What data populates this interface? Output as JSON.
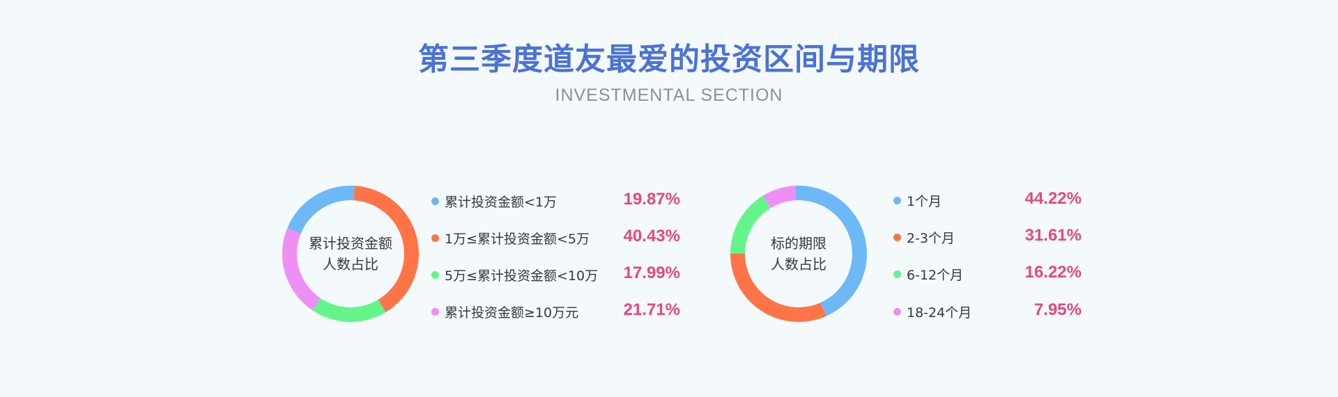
{
  "header": {
    "title": "第三季度道友最爱的投资区间与期限",
    "subtitle": "INVESTMENTAL SECTION"
  },
  "chart_data": [
    {
      "type": "pie",
      "title": "",
      "center_label_line1": "累计投资金额",
      "center_label_line2": "人数占比",
      "categories": [
        "累计投资金额<1万",
        "1万≤累计投资金额<5万",
        "5万≤累计投资金额<10万",
        "累计投资金额≥10万元"
      ],
      "values": [
        19.87,
        40.43,
        17.99,
        21.71
      ],
      "value_labels": [
        "19.87%",
        "40.43%",
        "17.99%",
        "21.71%"
      ],
      "colors": [
        "#6db8f7",
        "#ff7446",
        "#63f58a",
        "#ee8ff5"
      ]
    },
    {
      "type": "pie",
      "title": "",
      "center_label_line1": "标的期限",
      "center_label_line2": "人数占比",
      "categories": [
        "1个月",
        "2-3个月",
        "6-12个月",
        "18-24个月"
      ],
      "values": [
        44.22,
        31.61,
        16.22,
        7.95
      ],
      "value_labels": [
        "44.22%",
        "31.61%",
        "16.22%",
        "7.95%"
      ],
      "colors": [
        "#6db8f7",
        "#ff7446",
        "#63f58a",
        "#ee8ff5"
      ]
    }
  ]
}
